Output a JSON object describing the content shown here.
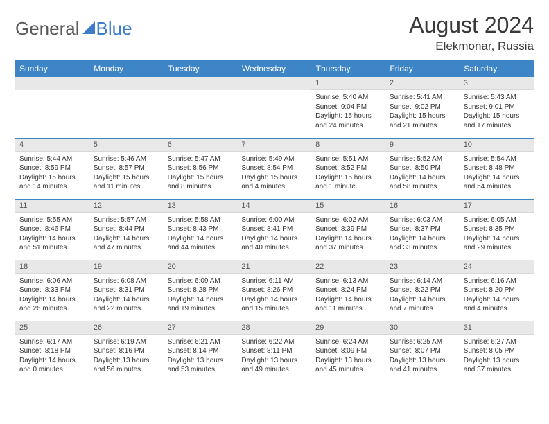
{
  "logo": {
    "part1": "General",
    "part2": "Blue"
  },
  "title": "August 2024",
  "location": "Elekmonar, Russia",
  "colors": {
    "header_bg": "#3d85c6",
    "header_text": "#ffffff",
    "daynum_bg": "#e8e8e8",
    "border": "#3d85c6",
    "body_text": "#333333",
    "logo_gray": "#5a5a5a",
    "logo_blue": "#3d7cc9"
  },
  "day_headers": [
    "Sunday",
    "Monday",
    "Tuesday",
    "Wednesday",
    "Thursday",
    "Friday",
    "Saturday"
  ],
  "weeks": [
    [
      null,
      null,
      null,
      null,
      {
        "n": "1",
        "sr": "5:40 AM",
        "ss": "9:04 PM",
        "dl": "15 hours and 24 minutes."
      },
      {
        "n": "2",
        "sr": "5:41 AM",
        "ss": "9:02 PM",
        "dl": "15 hours and 21 minutes."
      },
      {
        "n": "3",
        "sr": "5:43 AM",
        "ss": "9:01 PM",
        "dl": "15 hours and 17 minutes."
      }
    ],
    [
      {
        "n": "4",
        "sr": "5:44 AM",
        "ss": "8:59 PM",
        "dl": "15 hours and 14 minutes."
      },
      {
        "n": "5",
        "sr": "5:46 AM",
        "ss": "8:57 PM",
        "dl": "15 hours and 11 minutes."
      },
      {
        "n": "6",
        "sr": "5:47 AM",
        "ss": "8:56 PM",
        "dl": "15 hours and 8 minutes."
      },
      {
        "n": "7",
        "sr": "5:49 AM",
        "ss": "8:54 PM",
        "dl": "15 hours and 4 minutes."
      },
      {
        "n": "8",
        "sr": "5:51 AM",
        "ss": "8:52 PM",
        "dl": "15 hours and 1 minute."
      },
      {
        "n": "9",
        "sr": "5:52 AM",
        "ss": "8:50 PM",
        "dl": "14 hours and 58 minutes."
      },
      {
        "n": "10",
        "sr": "5:54 AM",
        "ss": "8:48 PM",
        "dl": "14 hours and 54 minutes."
      }
    ],
    [
      {
        "n": "11",
        "sr": "5:55 AM",
        "ss": "8:46 PM",
        "dl": "14 hours and 51 minutes."
      },
      {
        "n": "12",
        "sr": "5:57 AM",
        "ss": "8:44 PM",
        "dl": "14 hours and 47 minutes."
      },
      {
        "n": "13",
        "sr": "5:58 AM",
        "ss": "8:43 PM",
        "dl": "14 hours and 44 minutes."
      },
      {
        "n": "14",
        "sr": "6:00 AM",
        "ss": "8:41 PM",
        "dl": "14 hours and 40 minutes."
      },
      {
        "n": "15",
        "sr": "6:02 AM",
        "ss": "8:39 PM",
        "dl": "14 hours and 37 minutes."
      },
      {
        "n": "16",
        "sr": "6:03 AM",
        "ss": "8:37 PM",
        "dl": "14 hours and 33 minutes."
      },
      {
        "n": "17",
        "sr": "6:05 AM",
        "ss": "8:35 PM",
        "dl": "14 hours and 29 minutes."
      }
    ],
    [
      {
        "n": "18",
        "sr": "6:06 AM",
        "ss": "8:33 PM",
        "dl": "14 hours and 26 minutes."
      },
      {
        "n": "19",
        "sr": "6:08 AM",
        "ss": "8:31 PM",
        "dl": "14 hours and 22 minutes."
      },
      {
        "n": "20",
        "sr": "6:09 AM",
        "ss": "8:28 PM",
        "dl": "14 hours and 19 minutes."
      },
      {
        "n": "21",
        "sr": "6:11 AM",
        "ss": "8:26 PM",
        "dl": "14 hours and 15 minutes."
      },
      {
        "n": "22",
        "sr": "6:13 AM",
        "ss": "8:24 PM",
        "dl": "14 hours and 11 minutes."
      },
      {
        "n": "23",
        "sr": "6:14 AM",
        "ss": "8:22 PM",
        "dl": "14 hours and 7 minutes."
      },
      {
        "n": "24",
        "sr": "6:16 AM",
        "ss": "8:20 PM",
        "dl": "14 hours and 4 minutes."
      }
    ],
    [
      {
        "n": "25",
        "sr": "6:17 AM",
        "ss": "8:18 PM",
        "dl": "14 hours and 0 minutes."
      },
      {
        "n": "26",
        "sr": "6:19 AM",
        "ss": "8:16 PM",
        "dl": "13 hours and 56 minutes."
      },
      {
        "n": "27",
        "sr": "6:21 AM",
        "ss": "8:14 PM",
        "dl": "13 hours and 53 minutes."
      },
      {
        "n": "28",
        "sr": "6:22 AM",
        "ss": "8:11 PM",
        "dl": "13 hours and 49 minutes."
      },
      {
        "n": "29",
        "sr": "6:24 AM",
        "ss": "8:09 PM",
        "dl": "13 hours and 45 minutes."
      },
      {
        "n": "30",
        "sr": "6:25 AM",
        "ss": "8:07 PM",
        "dl": "13 hours and 41 minutes."
      },
      {
        "n": "31",
        "sr": "6:27 AM",
        "ss": "8:05 PM",
        "dl": "13 hours and 37 minutes."
      }
    ]
  ],
  "labels": {
    "sunrise": "Sunrise:",
    "sunset": "Sunset:",
    "daylight": "Daylight:"
  }
}
